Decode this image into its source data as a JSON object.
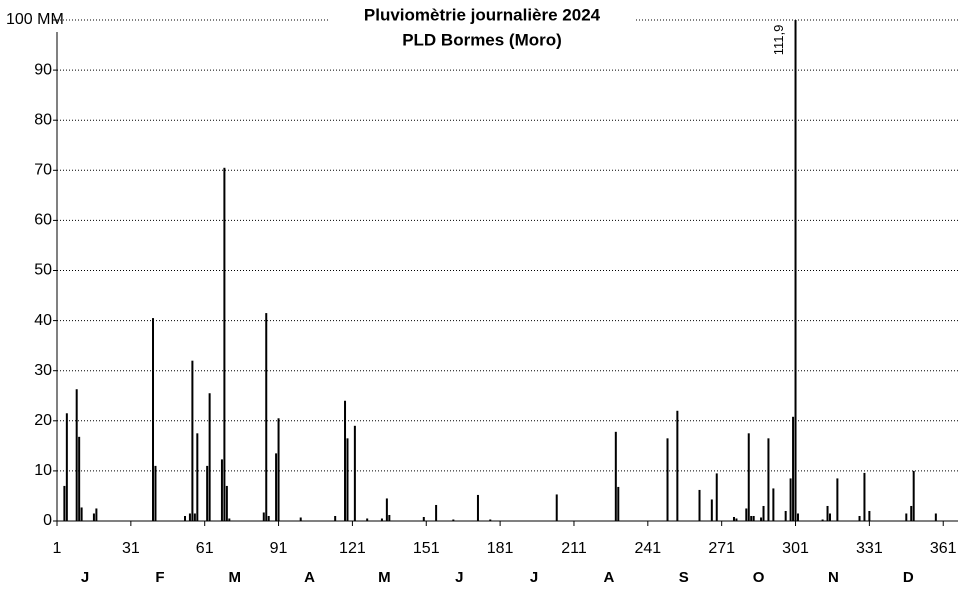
{
  "chart_data": {
    "type": "bar",
    "title": "Pluviomètrie journalière 2024",
    "subtitle": "PLD Bormes (Moro)",
    "x": [
      4,
      5,
      9,
      10,
      11,
      16,
      17,
      40,
      41,
      53,
      55,
      56,
      57,
      58,
      62,
      63,
      68,
      69,
      70,
      71,
      85,
      86,
      87,
      90,
      91,
      100,
      114,
      118,
      119,
      122,
      127,
      133,
      135,
      136,
      150,
      155,
      162,
      172,
      177,
      204,
      228,
      229,
      249,
      253,
      262,
      267,
      269,
      276,
      277,
      281,
      282,
      283,
      284,
      287,
      288,
      290,
      292,
      297,
      299,
      300,
      301,
      302,
      312,
      314,
      315,
      318,
      327,
      329,
      331,
      346,
      348,
      349,
      358
    ],
    "values": [
      7,
      21.5,
      26.3,
      16.8,
      2.7,
      1.5,
      2.5,
      40.5,
      11,
      1,
      1.5,
      32,
      1.5,
      17.5,
      11,
      25.5,
      12.3,
      70.5,
      7,
      0.5,
      1.7,
      41.5,
      1,
      13.5,
      20.5,
      0.7,
      1,
      24,
      16.5,
      19,
      0.5,
      0.5,
      4.5,
      1.2,
      0.8,
      3.2,
      0.3,
      5.2,
      0.3,
      5.3,
      17.8,
      6.8,
      16.5,
      22,
      6.2,
      4.3,
      9.5,
      0.8,
      0.5,
      2.5,
      17.5,
      1,
      1,
      0.7,
      3,
      16.5,
      6.5,
      2,
      8.5,
      20.8,
      111.9,
      1.5,
      0.3,
      3,
      1.5,
      8.5,
      1,
      9.6,
      2,
      1.5,
      3,
      10,
      1.5
    ],
    "value_labels": [
      null,
      null,
      null,
      null,
      null,
      null,
      null,
      null,
      null,
      null,
      null,
      null,
      null,
      null,
      null,
      null,
      null,
      null,
      null,
      null,
      null,
      null,
      null,
      null,
      null,
      null,
      null,
      null,
      null,
      null,
      null,
      null,
      null,
      null,
      null,
      null,
      null,
      null,
      null,
      null,
      null,
      null,
      null,
      null,
      null,
      null,
      null,
      null,
      null,
      null,
      null,
      null,
      null,
      null,
      null,
      null,
      null,
      null,
      null,
      null,
      "111,9",
      null,
      null,
      null,
      null,
      null,
      null,
      null,
      null,
      null,
      null,
      null,
      null
    ],
    "color": "#000000",
    "xlim": [
      1,
      367
    ],
    "xticks": [
      1,
      31,
      61,
      91,
      121,
      151,
      181,
      211,
      241,
      271,
      301,
      331,
      361
    ],
    "ylim": [
      0,
      100
    ],
    "yticks": [
      0,
      10,
      20,
      30,
      40,
      50,
      60,
      70,
      80,
      90,
      {
        "value": 100,
        "label": "100 MM"
      }
    ],
    "month_labels": [
      "J",
      "F",
      "M",
      "A",
      "M",
      "J",
      "J",
      "A",
      "S",
      "O",
      "N",
      "D"
    ],
    "grid": true
  }
}
